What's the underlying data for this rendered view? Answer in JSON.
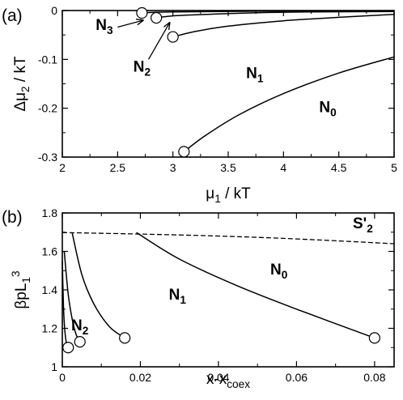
{
  "chart_data": [
    {
      "type": "line",
      "panel_label": "(a)",
      "xlabel": "μ₁ / kT",
      "ylabel": "Δμ₂ / kT",
      "xlim": [
        2,
        5
      ],
      "ylim": [
        -0.3,
        0
      ],
      "xticks": [
        "2",
        "2.5",
        "3",
        "3.5",
        "4",
        "4.5",
        "5"
      ],
      "yticks": [
        "0",
        "-0.1",
        "-0.2",
        "-0.3"
      ],
      "series": [
        {
          "name": "N₃",
          "x": [
            2.72,
            2.8,
            3.0,
            3.4,
            4.0,
            5.0
          ],
          "y": [
            -0.005,
            -0.004,
            -0.003,
            -0.002,
            -0.001,
            -0.0005
          ]
        },
        {
          "name": "N₂",
          "x": [
            2.85,
            3.0,
            3.3,
            3.7,
            4.2,
            5.0
          ],
          "y": [
            -0.015,
            -0.011,
            -0.008,
            -0.005,
            -0.003,
            -0.002
          ]
        },
        {
          "name": "N₁",
          "x": [
            3.0,
            3.2,
            3.5,
            4.0,
            4.5,
            5.0
          ],
          "y": [
            -0.054,
            -0.043,
            -0.032,
            -0.021,
            -0.014,
            -0.008
          ]
        },
        {
          "name": "N₀",
          "x": [
            3.1,
            3.3,
            3.6,
            4.0,
            4.5,
            5.0
          ],
          "y": [
            -0.289,
            -0.255,
            -0.213,
            -0.17,
            -0.128,
            -0.095
          ]
        }
      ],
      "endpoints": [
        {
          "x": 2.72,
          "y": -0.005
        },
        {
          "x": 2.85,
          "y": -0.015
        },
        {
          "x": 3.0,
          "y": -0.054
        },
        {
          "x": 3.1,
          "y": -0.289
        }
      ],
      "annotations": [
        {
          "text": "N₃",
          "x": 2.38,
          "y": -0.04
        },
        {
          "text": "N₂",
          "x": 2.72,
          "y": -0.125
        },
        {
          "text": "N₁",
          "x": 3.74,
          "y": -0.138
        },
        {
          "text": "N₀",
          "x": 4.4,
          "y": -0.208
        }
      ]
    },
    {
      "type": "line",
      "panel_label": "(b)",
      "xlabel": "x-x_coex",
      "ylabel": "βpL₁³",
      "xlim": [
        0,
        0.085
      ],
      "ylim": [
        1.0,
        1.8
      ],
      "xticks": [
        "0",
        "0.02",
        "0.04",
        "0.06",
        "0.08"
      ],
      "yticks": [
        "1",
        "1.2",
        "1.4",
        "1.6",
        "1.8"
      ],
      "series": [
        {
          "name": "S'₂",
          "style": "dashed",
          "x": [
            0,
            0.02,
            0.04,
            0.06,
            0.085
          ],
          "y": [
            1.698,
            1.69,
            1.68,
            1.665,
            1.64
          ]
        },
        {
          "name": "N₀",
          "x": [
            0.019,
            0.03,
            0.045,
            0.06,
            0.08
          ],
          "y": [
            1.698,
            1.56,
            1.42,
            1.3,
            1.15
          ]
        },
        {
          "name": "N₁",
          "x": [
            0.0025,
            0.005,
            0.008,
            0.012,
            0.016
          ],
          "y": [
            1.698,
            1.48,
            1.33,
            1.21,
            1.15
          ]
        },
        {
          "name": "N₂",
          "x": [
            0.0005,
            0.0015,
            0.0025,
            0.0035,
            0.0045
          ],
          "y": [
            1.6,
            1.38,
            1.25,
            1.17,
            1.13
          ]
        },
        {
          "name": "N₃",
          "x": [
            0,
            0.0003,
            0.0006,
            0.001,
            0.0015
          ],
          "y": [
            1.55,
            1.32,
            1.2,
            1.13,
            1.1
          ]
        }
      ],
      "endpoints": [
        {
          "x": 0.0015,
          "y": 1.1
        },
        {
          "x": 0.0045,
          "y": 1.13
        },
        {
          "x": 0.016,
          "y": 1.15
        },
        {
          "x": 0.08,
          "y": 1.15
        }
      ],
      "annotations": [
        {
          "text": "S'₂",
          "x": 0.077,
          "y": 1.72
        },
        {
          "text": "N₀",
          "x": 0.0555,
          "y": 1.48
        },
        {
          "text": "N₁",
          "x": 0.0295,
          "y": 1.35
        },
        {
          "text": "N₂",
          "x": 0.0045,
          "y": 1.19
        }
      ]
    }
  ]
}
